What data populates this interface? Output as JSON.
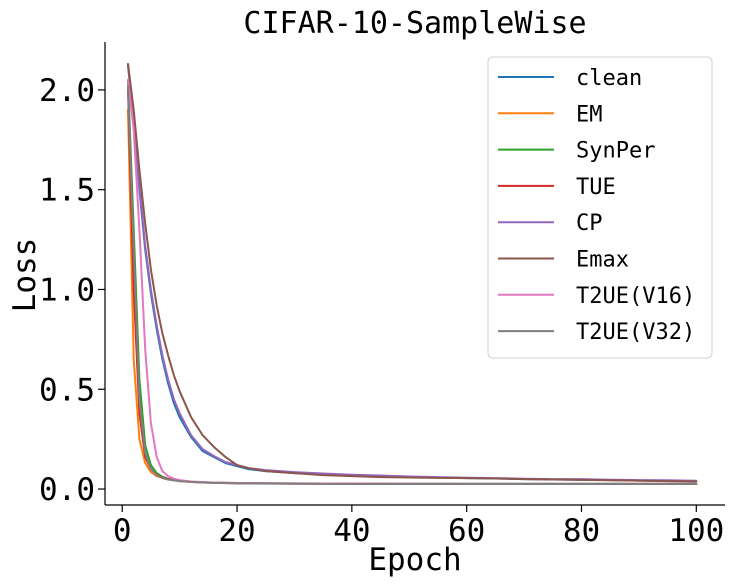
{
  "chart_data": {
    "type": "line",
    "title": "CIFAR-10-SampleWise",
    "xlabel": "Epoch",
    "ylabel": "Loss",
    "xlim": [
      -3,
      105
    ],
    "ylim": [
      -0.08,
      2.24
    ],
    "xticks": [
      0,
      20,
      40,
      60,
      80,
      100
    ],
    "xtick_labels": [
      "0",
      "20",
      "40",
      "60",
      "80",
      "100"
    ],
    "yticks": [
      0.0,
      0.5,
      1.0,
      1.5,
      2.0
    ],
    "ytick_labels": [
      "0.0",
      "0.5",
      "1.0",
      "1.5",
      "2.0"
    ],
    "legend_position": "top-right",
    "series": [
      {
        "name": "clean",
        "color": "#1f77b4",
        "points": [
          [
            1,
            2.12
          ],
          [
            2,
            1.85
          ],
          [
            3,
            1.5
          ],
          [
            4,
            1.2
          ],
          [
            5,
            0.98
          ],
          [
            6,
            0.8
          ],
          [
            7,
            0.65
          ],
          [
            8,
            0.53
          ],
          [
            9,
            0.43
          ],
          [
            10,
            0.36
          ],
          [
            12,
            0.26
          ],
          [
            14,
            0.19
          ],
          [
            16,
            0.16
          ],
          [
            18,
            0.13
          ],
          [
            20,
            0.115
          ],
          [
            22,
            0.1
          ],
          [
            25,
            0.09
          ],
          [
            30,
            0.08
          ],
          [
            35,
            0.075
          ],
          [
            40,
            0.07
          ],
          [
            45,
            0.065
          ],
          [
            50,
            0.06
          ],
          [
            55,
            0.058
          ],
          [
            60,
            0.055
          ],
          [
            65,
            0.053
          ],
          [
            70,
            0.05
          ],
          [
            75,
            0.048
          ],
          [
            80,
            0.047
          ],
          [
            85,
            0.045
          ],
          [
            90,
            0.043
          ],
          [
            95,
            0.042
          ],
          [
            100,
            0.04
          ]
        ]
      },
      {
        "name": "EM",
        "color": "#ff7f0e",
        "points": [
          [
            1,
            1.9
          ],
          [
            2,
            0.65
          ],
          [
            3,
            0.25
          ],
          [
            4,
            0.13
          ],
          [
            5,
            0.085
          ],
          [
            6,
            0.065
          ],
          [
            7,
            0.055
          ],
          [
            8,
            0.048
          ],
          [
            10,
            0.04
          ],
          [
            12,
            0.036
          ],
          [
            15,
            0.032
          ],
          [
            20,
            0.029
          ],
          [
            30,
            0.027
          ],
          [
            40,
            0.026
          ],
          [
            50,
            0.025
          ],
          [
            60,
            0.025
          ],
          [
            70,
            0.025
          ],
          [
            80,
            0.025
          ],
          [
            90,
            0.025
          ],
          [
            100,
            0.025
          ]
        ]
      },
      {
        "name": "SynPer",
        "color": "#2ca02c",
        "points": [
          [
            1,
            2.05
          ],
          [
            2,
            1.3
          ],
          [
            3,
            0.55
          ],
          [
            4,
            0.22
          ],
          [
            5,
            0.12
          ],
          [
            6,
            0.08
          ],
          [
            7,
            0.062
          ],
          [
            8,
            0.052
          ],
          [
            10,
            0.042
          ],
          [
            12,
            0.037
          ],
          [
            15,
            0.033
          ],
          [
            20,
            0.03
          ],
          [
            30,
            0.028
          ],
          [
            40,
            0.027
          ],
          [
            60,
            0.026
          ],
          [
            80,
            0.026
          ],
          [
            100,
            0.026
          ]
        ]
      },
      {
        "name": "TUE",
        "color": "#d62728",
        "points": [
          [
            1,
            2.0
          ],
          [
            2,
            1.0
          ],
          [
            3,
            0.38
          ],
          [
            4,
            0.16
          ],
          [
            5,
            0.1
          ],
          [
            6,
            0.072
          ],
          [
            7,
            0.058
          ],
          [
            8,
            0.05
          ],
          [
            10,
            0.041
          ],
          [
            12,
            0.036
          ],
          [
            15,
            0.032
          ],
          [
            20,
            0.029
          ],
          [
            30,
            0.027
          ],
          [
            40,
            0.026
          ],
          [
            60,
            0.025
          ],
          [
            80,
            0.025
          ],
          [
            100,
            0.025
          ]
        ]
      },
      {
        "name": "CP",
        "color": "#9467bd",
        "points": [
          [
            1,
            2.13
          ],
          [
            2,
            1.88
          ],
          [
            3,
            1.52
          ],
          [
            4,
            1.22
          ],
          [
            5,
            1.0
          ],
          [
            6,
            0.82
          ],
          [
            7,
            0.67
          ],
          [
            8,
            0.55
          ],
          [
            9,
            0.45
          ],
          [
            10,
            0.38
          ],
          [
            12,
            0.27
          ],
          [
            14,
            0.2
          ],
          [
            16,
            0.165
          ],
          [
            18,
            0.135
          ],
          [
            20,
            0.12
          ],
          [
            22,
            0.105
          ],
          [
            25,
            0.095
          ],
          [
            30,
            0.085
          ],
          [
            35,
            0.078
          ],
          [
            40,
            0.072
          ],
          [
            45,
            0.068
          ],
          [
            50,
            0.063
          ],
          [
            55,
            0.06
          ],
          [
            60,
            0.057
          ],
          [
            65,
            0.055
          ],
          [
            70,
            0.052
          ],
          [
            75,
            0.05
          ],
          [
            80,
            0.05
          ],
          [
            85,
            0.047
          ],
          [
            90,
            0.045
          ],
          [
            95,
            0.044
          ],
          [
            100,
            0.042
          ]
        ]
      },
      {
        "name": "Emax",
        "color": "#8c564b",
        "points": [
          [
            1,
            2.13
          ],
          [
            2,
            1.9
          ],
          [
            3,
            1.6
          ],
          [
            4,
            1.33
          ],
          [
            5,
            1.1
          ],
          [
            6,
            0.92
          ],
          [
            7,
            0.78
          ],
          [
            8,
            0.67
          ],
          [
            9,
            0.57
          ],
          [
            10,
            0.49
          ],
          [
            12,
            0.36
          ],
          [
            14,
            0.27
          ],
          [
            16,
            0.21
          ],
          [
            18,
            0.16
          ],
          [
            20,
            0.12
          ],
          [
            22,
            0.105
          ],
          [
            25,
            0.09
          ],
          [
            30,
            0.08
          ],
          [
            35,
            0.07
          ],
          [
            40,
            0.065
          ],
          [
            45,
            0.06
          ],
          [
            50,
            0.058
          ],
          [
            55,
            0.056
          ],
          [
            60,
            0.055
          ],
          [
            65,
            0.053
          ],
          [
            70,
            0.05
          ],
          [
            75,
            0.048
          ],
          [
            80,
            0.046
          ],
          [
            85,
            0.044
          ],
          [
            90,
            0.042
          ],
          [
            95,
            0.04
          ],
          [
            100,
            0.038
          ]
        ]
      },
      {
        "name": "T2UE(V16)",
        "color": "#e377c2",
        "points": [
          [
            1,
            2.05
          ],
          [
            2,
            1.8
          ],
          [
            3,
            1.3
          ],
          [
            4,
            0.7
          ],
          [
            5,
            0.33
          ],
          [
            6,
            0.16
          ],
          [
            7,
            0.09
          ],
          [
            8,
            0.065
          ],
          [
            9,
            0.052
          ],
          [
            10,
            0.045
          ],
          [
            12,
            0.038
          ],
          [
            15,
            0.033
          ],
          [
            20,
            0.03
          ],
          [
            30,
            0.028
          ],
          [
            40,
            0.027
          ],
          [
            60,
            0.026
          ],
          [
            80,
            0.026
          ],
          [
            100,
            0.026
          ]
        ]
      },
      {
        "name": "T2UE(V32)",
        "color": "#7f7f7f",
        "points": [
          [
            1,
            2.02
          ],
          [
            2,
            1.2
          ],
          [
            3,
            0.45
          ],
          [
            4,
            0.18
          ],
          [
            5,
            0.1
          ],
          [
            6,
            0.07
          ],
          [
            7,
            0.056
          ],
          [
            8,
            0.048
          ],
          [
            10,
            0.04
          ],
          [
            12,
            0.035
          ],
          [
            15,
            0.031
          ],
          [
            20,
            0.028
          ],
          [
            30,
            0.026
          ],
          [
            40,
            0.025
          ],
          [
            60,
            0.025
          ],
          [
            80,
            0.025
          ],
          [
            100,
            0.025
          ]
        ]
      }
    ]
  }
}
